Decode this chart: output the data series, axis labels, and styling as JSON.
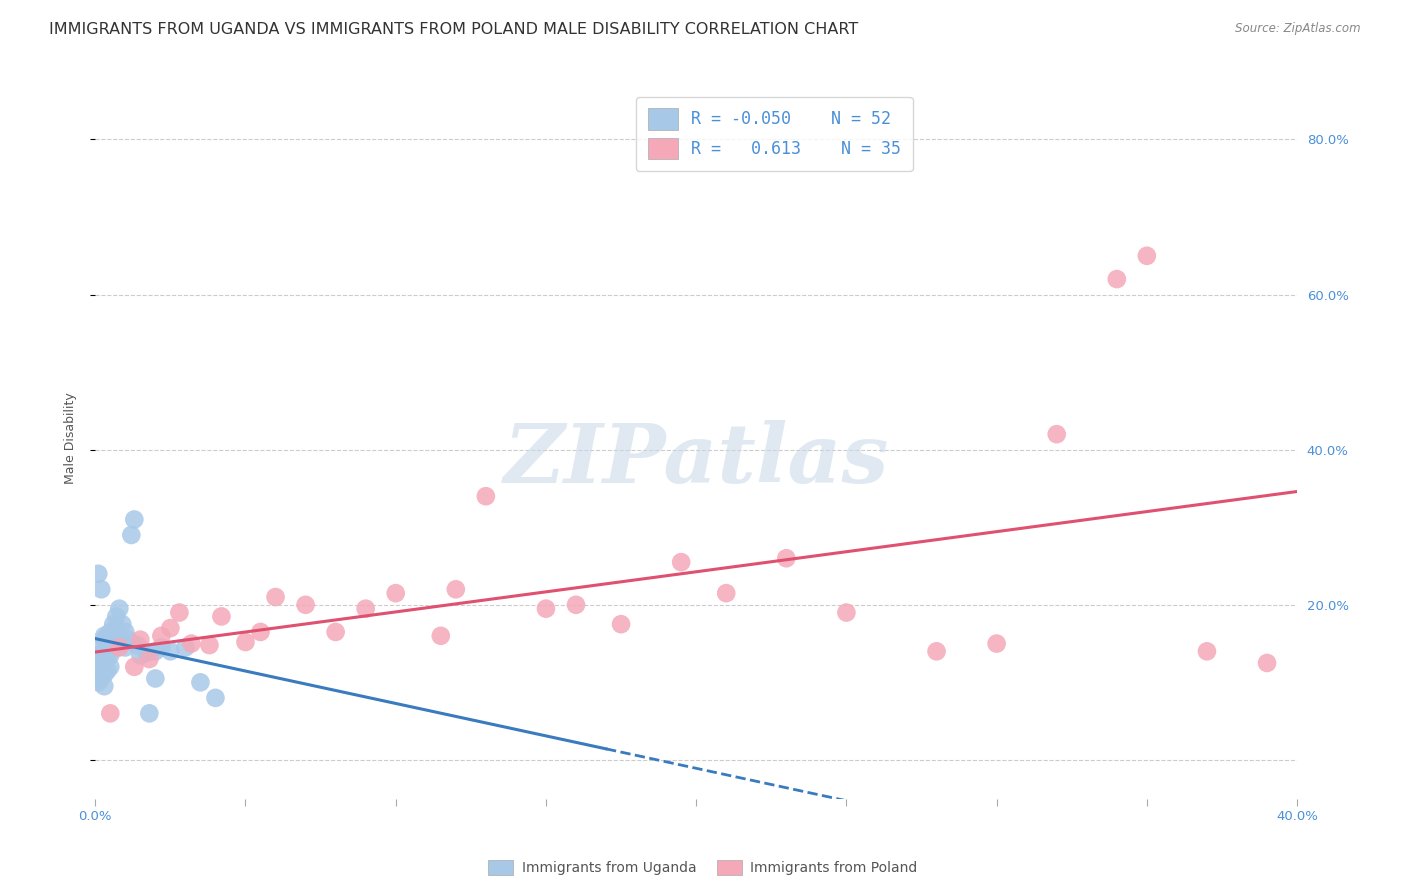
{
  "title": "IMMIGRANTS FROM UGANDA VS IMMIGRANTS FROM POLAND MALE DISABILITY CORRELATION CHART",
  "source": "Source: ZipAtlas.com",
  "ylabel": "Male Disability",
  "xlim": [
    0.0,
    0.4
  ],
  "ylim": [
    -0.05,
    0.88
  ],
  "uganda_color": "#a8c8e8",
  "poland_color": "#f4a8b8",
  "uganda_line_color": "#3a7abf",
  "poland_line_color": "#e05070",
  "R_uganda": -0.05,
  "N_uganda": 52,
  "R_poland": 0.613,
  "N_poland": 35,
  "uganda_x": [
    0.001,
    0.001,
    0.001,
    0.002,
    0.002,
    0.002,
    0.002,
    0.003,
    0.003,
    0.003,
    0.003,
    0.003,
    0.004,
    0.004,
    0.004,
    0.004,
    0.005,
    0.005,
    0.005,
    0.005,
    0.006,
    0.006,
    0.006,
    0.007,
    0.007,
    0.008,
    0.008,
    0.009,
    0.009,
    0.01,
    0.01,
    0.011,
    0.012,
    0.013,
    0.014,
    0.015,
    0.017,
    0.018,
    0.02,
    0.022,
    0.001,
    0.002,
    0.003,
    0.004,
    0.005,
    0.006,
    0.007,
    0.02,
    0.025,
    0.03,
    0.035,
    0.04
  ],
  "uganda_y": [
    0.135,
    0.12,
    0.1,
    0.148,
    0.132,
    0.115,
    0.105,
    0.155,
    0.14,
    0.125,
    0.11,
    0.095,
    0.16,
    0.145,
    0.13,
    0.115,
    0.165,
    0.15,
    0.135,
    0.12,
    0.175,
    0.16,
    0.145,
    0.185,
    0.17,
    0.195,
    0.16,
    0.175,
    0.15,
    0.165,
    0.145,
    0.155,
    0.29,
    0.31,
    0.148,
    0.135,
    0.138,
    0.06,
    0.105,
    0.145,
    0.24,
    0.22,
    0.16,
    0.155,
    0.15,
    0.155,
    0.145,
    0.14,
    0.14,
    0.145,
    0.1,
    0.08
  ],
  "poland_x": [
    0.005,
    0.008,
    0.013,
    0.015,
    0.018,
    0.022,
    0.025,
    0.028,
    0.032,
    0.038,
    0.042,
    0.05,
    0.055,
    0.06,
    0.07,
    0.08,
    0.09,
    0.1,
    0.115,
    0.12,
    0.13,
    0.15,
    0.16,
    0.175,
    0.195,
    0.21,
    0.23,
    0.25,
    0.28,
    0.3,
    0.32,
    0.34,
    0.35,
    0.37,
    0.39
  ],
  "poland_y": [
    0.06,
    0.145,
    0.12,
    0.155,
    0.13,
    0.16,
    0.17,
    0.19,
    0.15,
    0.148,
    0.185,
    0.152,
    0.165,
    0.21,
    0.2,
    0.165,
    0.195,
    0.215,
    0.16,
    0.22,
    0.34,
    0.195,
    0.2,
    0.175,
    0.255,
    0.215,
    0.26,
    0.19,
    0.14,
    0.15,
    0.42,
    0.62,
    0.65,
    0.14,
    0.125
  ],
  "watermark_text": "ZIPatlas",
  "background_color": "#ffffff",
  "grid_color": "#cccccc",
  "title_fontsize": 11.5,
  "axis_label_fontsize": 9,
  "tick_fontsize": 9.5,
  "legend_fontsize": 12
}
